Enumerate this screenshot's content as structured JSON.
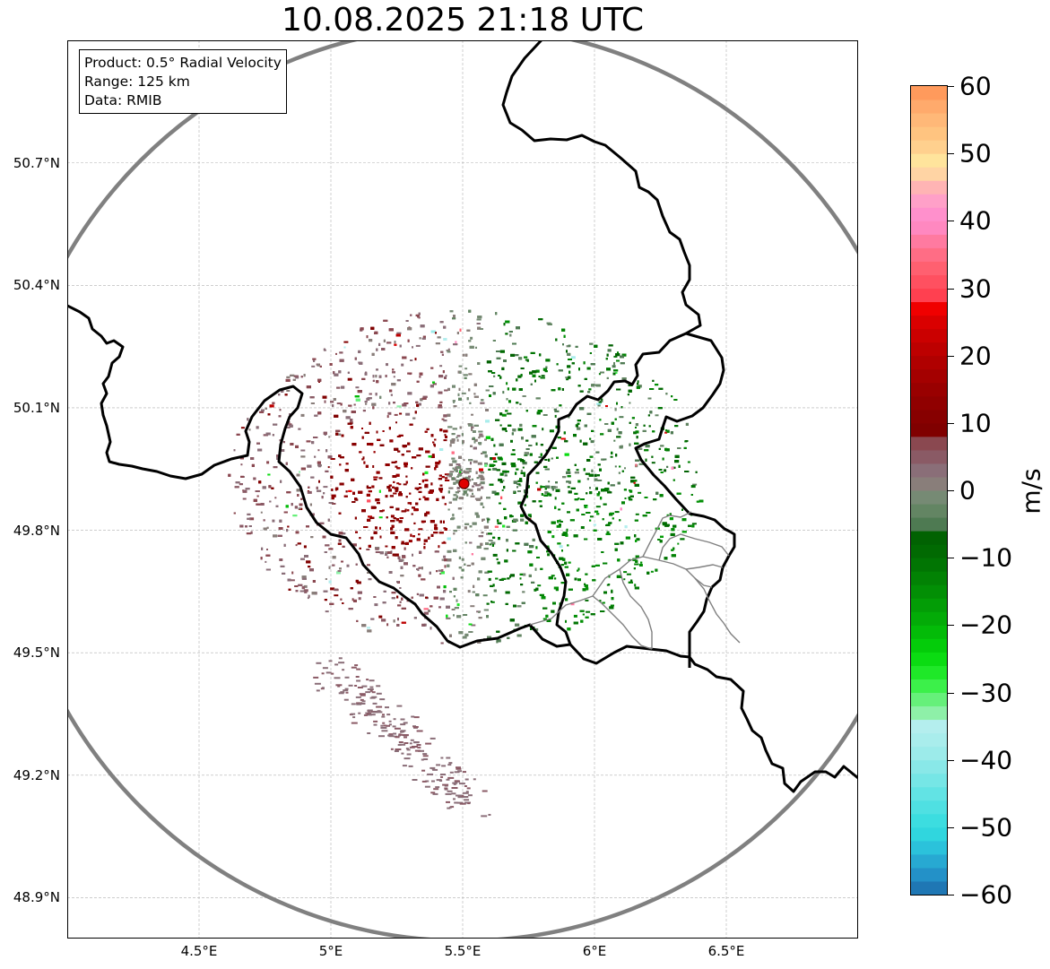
{
  "title": "10.08.2025 21:18 UTC",
  "info_box": {
    "product": "Product: 0.5° Radial Velocity",
    "range": "Range: 125 km",
    "data_source": "Data: RMIB"
  },
  "map": {
    "lon_min": 4.0,
    "lon_max": 7.0,
    "lat_min": 48.8,
    "lat_max": 51.0,
    "radar_site": {
      "lon": 5.505,
      "lat": 49.914
    },
    "lat_ticks": [
      {
        "value": 48.9,
        "label": "48.9°N"
      },
      {
        "value": 49.2,
        "label": "49.2°N"
      },
      {
        "value": 49.5,
        "label": "49.5°N"
      },
      {
        "value": 49.8,
        "label": "49.8°N"
      },
      {
        "value": 50.1,
        "label": "50.1°N"
      },
      {
        "value": 50.4,
        "label": "50.4°N"
      },
      {
        "value": 50.7,
        "label": "50.7°N"
      }
    ],
    "lon_ticks": [
      {
        "value": 4.5,
        "label": "4.5°E"
      },
      {
        "value": 5.0,
        "label": "5°E"
      },
      {
        "value": 5.5,
        "label": "5.5°E"
      },
      {
        "value": 6.0,
        "label": "6°E"
      },
      {
        "value": 6.5,
        "label": "6.5°E"
      }
    ],
    "range_ring_color": "#808080",
    "border_color": "#000000"
  },
  "colorbar": {
    "label": "m/s",
    "vmin": -60,
    "vmax": 60,
    "ticks": [
      {
        "value": 60,
        "label": "60"
      },
      {
        "value": 50,
        "label": "50"
      },
      {
        "value": 40,
        "label": "40"
      },
      {
        "value": 30,
        "label": "30"
      },
      {
        "value": 20,
        "label": "20"
      },
      {
        "value": 10,
        "label": "10"
      },
      {
        "value": 0,
        "label": "0"
      },
      {
        "value": -10,
        "label": "−10"
      },
      {
        "value": -20,
        "label": "−20"
      },
      {
        "value": -30,
        "label": "−30"
      },
      {
        "value": -40,
        "label": "−40"
      },
      {
        "value": -50,
        "label": "−50"
      },
      {
        "value": -60,
        "label": "−60"
      }
    ],
    "stops": [
      {
        "from": -60,
        "to": -58,
        "color": "#1f77b4"
      },
      {
        "from": -58,
        "to": -56,
        "color": "#2391c8"
      },
      {
        "from": -56,
        "to": -54,
        "color": "#27a9d2"
      },
      {
        "from": -54,
        "to": -52,
        "color": "#2bc2db"
      },
      {
        "from": -52,
        "to": -50,
        "color": "#30d6de"
      },
      {
        "from": -50,
        "to": -48,
        "color": "#3cdde0"
      },
      {
        "from": -48,
        "to": -46,
        "color": "#4fe0e2"
      },
      {
        "from": -46,
        "to": -44,
        "color": "#62e3e4"
      },
      {
        "from": -44,
        "to": -42,
        "color": "#76e6e6"
      },
      {
        "from": -42,
        "to": -40,
        "color": "#89e8e8"
      },
      {
        "from": -40,
        "to": -38,
        "color": "#9cebea"
      },
      {
        "from": -38,
        "to": -36,
        "color": "#a9edec"
      },
      {
        "from": -36,
        "to": -34,
        "color": "#b4eeee"
      },
      {
        "from": -34,
        "to": -32,
        "color": "#8ef0a8"
      },
      {
        "from": -32,
        "to": -30,
        "color": "#66f07a"
      },
      {
        "from": -30,
        "to": -28,
        "color": "#3cf04a"
      },
      {
        "from": -28,
        "to": -26,
        "color": "#1fe828"
      },
      {
        "from": -26,
        "to": -24,
        "color": "#0bdc12"
      },
      {
        "from": -24,
        "to": -22,
        "color": "#04cc0a"
      },
      {
        "from": -22,
        "to": -20,
        "color": "#03bb08"
      },
      {
        "from": -20,
        "to": -18,
        "color": "#03ab07"
      },
      {
        "from": -18,
        "to": -16,
        "color": "#039d06"
      },
      {
        "from": -16,
        "to": -14,
        "color": "#028f05"
      },
      {
        "from": -14,
        "to": -12,
        "color": "#028204"
      },
      {
        "from": -12,
        "to": -10,
        "color": "#017503"
      },
      {
        "from": -10,
        "to": -8,
        "color": "#016a02"
      },
      {
        "from": -8,
        "to": -6,
        "color": "#016202"
      },
      {
        "from": -6,
        "to": -4,
        "color": "#4e7a52"
      },
      {
        "from": -4,
        "to": -2,
        "color": "#638563"
      },
      {
        "from": -2,
        "to": 0,
        "color": "#768a74"
      },
      {
        "from": 0,
        "to": 2,
        "color": "#897e7a"
      },
      {
        "from": 2,
        "to": 4,
        "color": "#8a6e78"
      },
      {
        "from": 4,
        "to": 6,
        "color": "#8a5a65"
      },
      {
        "from": 6,
        "to": 8,
        "color": "#8a4850"
      },
      {
        "from": 8,
        "to": 10,
        "color": "#800000"
      },
      {
        "from": 10,
        "to": 12,
        "color": "#870000"
      },
      {
        "from": 12,
        "to": 14,
        "color": "#900000"
      },
      {
        "from": 14,
        "to": 16,
        "color": "#990000"
      },
      {
        "from": 16,
        "to": 18,
        "color": "#a40000"
      },
      {
        "from": 18,
        "to": 20,
        "color": "#b00000"
      },
      {
        "from": 20,
        "to": 22,
        "color": "#bd0000"
      },
      {
        "from": 22,
        "to": 24,
        "color": "#cb0000"
      },
      {
        "from": 24,
        "to": 26,
        "color": "#da0000"
      },
      {
        "from": 26,
        "to": 28,
        "color": "#f00000"
      },
      {
        "from": 28,
        "to": 30,
        "color": "#ff4050"
      },
      {
        "from": 30,
        "to": 32,
        "color": "#ff5060"
      },
      {
        "from": 32,
        "to": 34,
        "color": "#ff6070"
      },
      {
        "from": 34,
        "to": 36,
        "color": "#ff6d85"
      },
      {
        "from": 36,
        "to": 38,
        "color": "#ff7aa0"
      },
      {
        "from": 38,
        "to": 40,
        "color": "#ff88c0"
      },
      {
        "from": 40,
        "to": 42,
        "color": "#ff90cc"
      },
      {
        "from": 42,
        "to": 44,
        "color": "#ffa0c8"
      },
      {
        "from": 44,
        "to": 46,
        "color": "#ffb4b4"
      },
      {
        "from": 46,
        "to": 48,
        "color": "#ffd4a4"
      },
      {
        "from": 48,
        "to": 50,
        "color": "#ffe49c"
      },
      {
        "from": 50,
        "to": 52,
        "color": "#ffd08e"
      },
      {
        "from": 52,
        "to": 54,
        "color": "#ffc480"
      },
      {
        "from": 54,
        "to": 56,
        "color": "#ffb878"
      },
      {
        "from": 56,
        "to": 58,
        "color": "#ffaa6c"
      },
      {
        "from": 58,
        "to": 60,
        "color": "#ff9a5c"
      }
    ]
  }
}
